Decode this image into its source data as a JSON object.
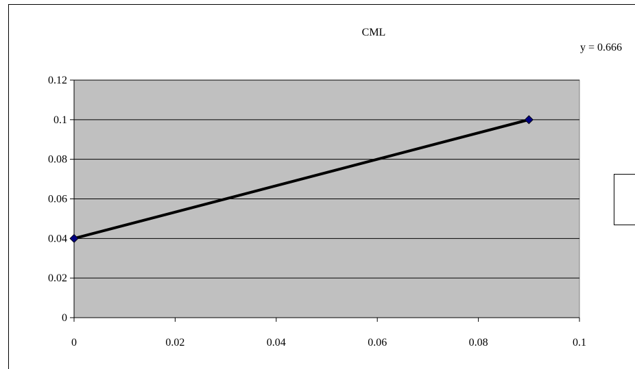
{
  "chart_data": {
    "type": "scatter",
    "title": "CML",
    "xlabel": "",
    "ylabel": "",
    "xlim": [
      0,
      0.1
    ],
    "ylim": [
      0,
      0.12
    ],
    "x_ticks": [
      "0",
      "0.02",
      "0.04",
      "0.06",
      "0.08",
      "0.1"
    ],
    "y_ticks": [
      "0",
      "0.02",
      "0.04",
      "0.06",
      "0.08",
      "0.1",
      "0.12"
    ],
    "grid": "horizontal",
    "series": [
      {
        "x": [
          0,
          0.09
        ],
        "y": [
          0.04,
          0.1
        ],
        "marker": "diamond",
        "marker_color": "#000080",
        "line_color": "#000000"
      }
    ],
    "trendline_label": "y = 0.666",
    "legend": "right",
    "plot_background": "#c0c0c0"
  }
}
